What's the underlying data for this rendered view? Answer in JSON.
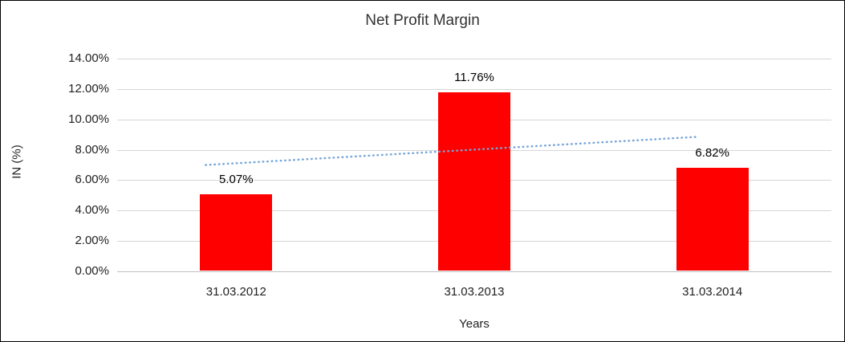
{
  "chart": {
    "title": "Net Profit Margin",
    "xlabel": "Years",
    "ylabel": "IN (%)"
  },
  "chart_data": {
    "type": "bar",
    "title": "Net Profit Margin",
    "xlabel": "Years",
    "ylabel": "IN (%)",
    "categories": [
      "31.03.2012",
      "31.03.2013",
      "31.03.2014"
    ],
    "values": [
      5.07,
      11.76,
      6.82
    ],
    "data_labels": [
      "5.07%",
      "11.76%",
      "6.82%"
    ],
    "ylim": [
      0,
      14
    ],
    "ytick_step": 2,
    "ytick_labels": [
      "0.00%",
      "2.00%",
      "4.00%",
      "6.00%",
      "8.00%",
      "10.00%",
      "12.00%",
      "14.00%"
    ],
    "grid": true,
    "legend": "none",
    "bar_color": "#fe0000",
    "trendline": {
      "type": "linear",
      "style": "dotted",
      "color": "#76a5d8",
      "x_start_frac": 0.124,
      "x_end_frac": 0.812,
      "start_value": 7.0,
      "end_value": 8.85
    }
  }
}
